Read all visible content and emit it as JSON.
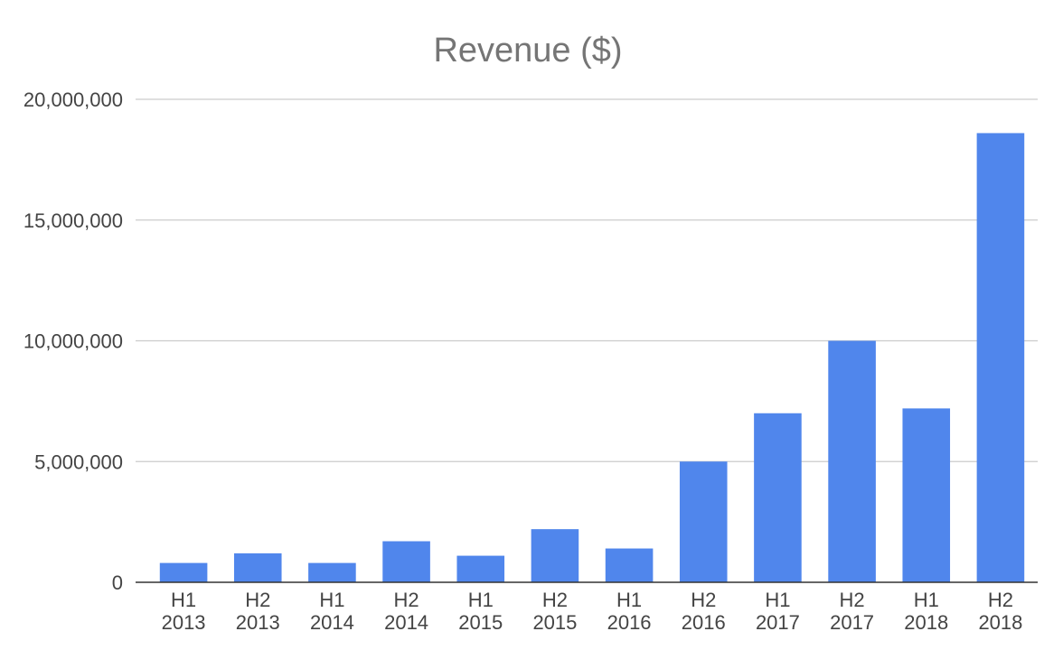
{
  "chart_data": {
    "type": "bar",
    "title": "Revenue ($)",
    "xlabel": "",
    "ylabel": "",
    "categories": [
      [
        "H1",
        "2013"
      ],
      [
        "H2",
        "2013"
      ],
      [
        "H1",
        "2014"
      ],
      [
        "H2",
        "2014"
      ],
      [
        "H1",
        "2015"
      ],
      [
        "H2",
        "2015"
      ],
      [
        "H1",
        "2016"
      ],
      [
        "H2",
        "2016"
      ],
      [
        "H1",
        "2017"
      ],
      [
        "H2",
        "2017"
      ],
      [
        "H1",
        "2018"
      ],
      [
        "H2",
        "2018"
      ]
    ],
    "values": [
      800000,
      1200000,
      800000,
      1700000,
      1100000,
      2200000,
      1400000,
      5000000,
      7000000,
      10000000,
      7200000,
      18600000
    ],
    "ylim": [
      0,
      20000000
    ],
    "yticks": [
      0,
      5000000,
      10000000,
      15000000,
      20000000
    ],
    "ytick_labels": [
      "0",
      "5,000,000",
      "10,000,000",
      "15,000,000",
      "20,000,000"
    ],
    "grid": true,
    "legend": "none",
    "bar_color": "#5086ec"
  }
}
